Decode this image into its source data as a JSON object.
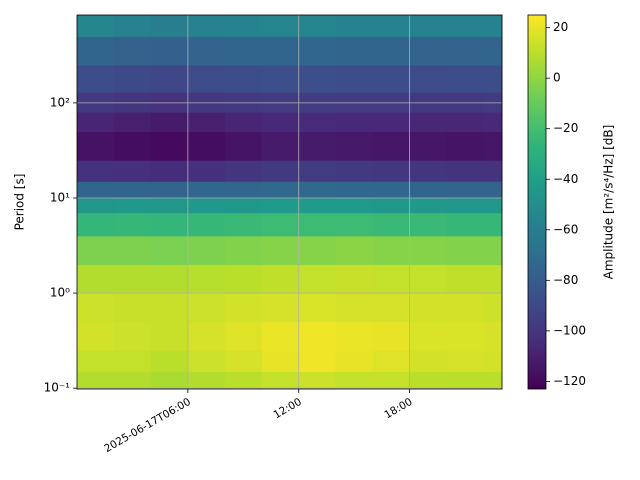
{
  "chart_data": {
    "type": "heatmap",
    "ylabel": "Period [s]",
    "colorbar_label": "Amplitude [m²/s⁴/Hz] [dB]",
    "colormap": "viridis",
    "yscale": "log",
    "grid": true,
    "x": [
      "2025-06-17T00:00",
      "2025-06-17T02:00",
      "2025-06-17T04:00",
      "2025-06-17T06:00",
      "2025-06-17T08:00",
      "2025-06-17T10:00",
      "2025-06-17T12:00",
      "2025-06-17T14:00",
      "2025-06-17T16:00",
      "2025-06-17T18:00",
      "2025-06-17T20:00",
      "2025-06-17T22:00"
    ],
    "xlim": [
      "2025-06-17T00:00",
      "2025-06-17T23:00"
    ],
    "xticks": [
      "2025-06-17T06:00",
      {
        "value": "2025-06-17T12:00",
        "label": "12:00"
      },
      {
        "value": "2025-06-17T18:00",
        "label": "18:00"
      }
    ],
    "y_edges": [
      0.098,
      0.15,
      0.25,
      0.5,
      1,
      2,
      4,
      7,
      10,
      15,
      25,
      50,
      80,
      130,
      250,
      500,
      840
    ],
    "ylim": [
      0.098,
      840
    ],
    "yticks": [
      {
        "value": 0.1,
        "label": "10⁻¹"
      },
      {
        "value": 1,
        "label": "10⁰"
      },
      {
        "value": 10,
        "label": "10¹"
      },
      {
        "value": 100,
        "label": "10²"
      }
    ],
    "values": [
      [
        8,
        8,
        6,
        8,
        10,
        12,
        14,
        12,
        12,
        10,
        10,
        10
      ],
      [
        12,
        12,
        10,
        14,
        16,
        20,
        22,
        20,
        18,
        15,
        16,
        15
      ],
      [
        15,
        14,
        13,
        16,
        18,
        21,
        22,
        21,
        20,
        17,
        17,
        16
      ],
      [
        14,
        13,
        13,
        14,
        15,
        16,
        17,
        16,
        16,
        15,
        15,
        14
      ],
      [
        8,
        8,
        8,
        9,
        10,
        11,
        12,
        13,
        12,
        12,
        11,
        11
      ],
      [
        -4,
        -4,
        -5,
        -4,
        -3,
        -2,
        -2,
        -1,
        -2,
        -2,
        -3,
        -3
      ],
      [
        -25,
        -24,
        -25,
        -24,
        -23,
        -22,
        -22,
        -22,
        -23,
        -23,
        -24,
        -24
      ],
      [
        -45,
        -44,
        -45,
        -44,
        -44,
        -43,
        -43,
        -43,
        -44,
        -44,
        -45,
        -45
      ],
      [
        -75,
        -75,
        -76,
        -74,
        -74,
        -73,
        -73,
        -74,
        -74,
        -75,
        -76,
        -76
      ],
      [
        -102,
        -103,
        -104,
        -103,
        -100,
        -98,
        -97,
        -98,
        -99,
        -100,
        -101,
        -101
      ],
      [
        -116,
        -118,
        -119,
        -118,
        -115,
        -112,
        -112,
        -113,
        -114,
        -114,
        -115,
        -114
      ],
      [
        -108,
        -110,
        -112,
        -110,
        -108,
        -106,
        -105,
        -106,
        -106,
        -107,
        -107,
        -106
      ],
      [
        -98,
        -100,
        -101,
        -99,
        -98,
        -97,
        -96,
        -97,
        -97,
        -98,
        -98,
        -97
      ],
      [
        -88,
        -90,
        -91,
        -89,
        -88,
        -87,
        -87,
        -88,
        -88,
        -89,
        -88,
        -88
      ],
      [
        -75,
        -77,
        -78,
        -76,
        -75,
        -75,
        -74,
        -75,
        -75,
        -76,
        -76,
        -75
      ],
      [
        -55,
        -58,
        -60,
        -58,
        -57,
        -56,
        -56,
        -57,
        -57,
        -58,
        -58,
        -57
      ]
    ],
    "clim": [
      -123,
      25
    ],
    "cticks": [
      {
        "value": -120,
        "label": "−120"
      },
      {
        "value": -100,
        "label": "−100"
      },
      {
        "value": -80,
        "label": "−80"
      },
      {
        "value": -60,
        "label": "−60"
      },
      {
        "value": -40,
        "label": "−40"
      },
      {
        "value": -20,
        "label": "−20"
      },
      0,
      20
    ]
  }
}
